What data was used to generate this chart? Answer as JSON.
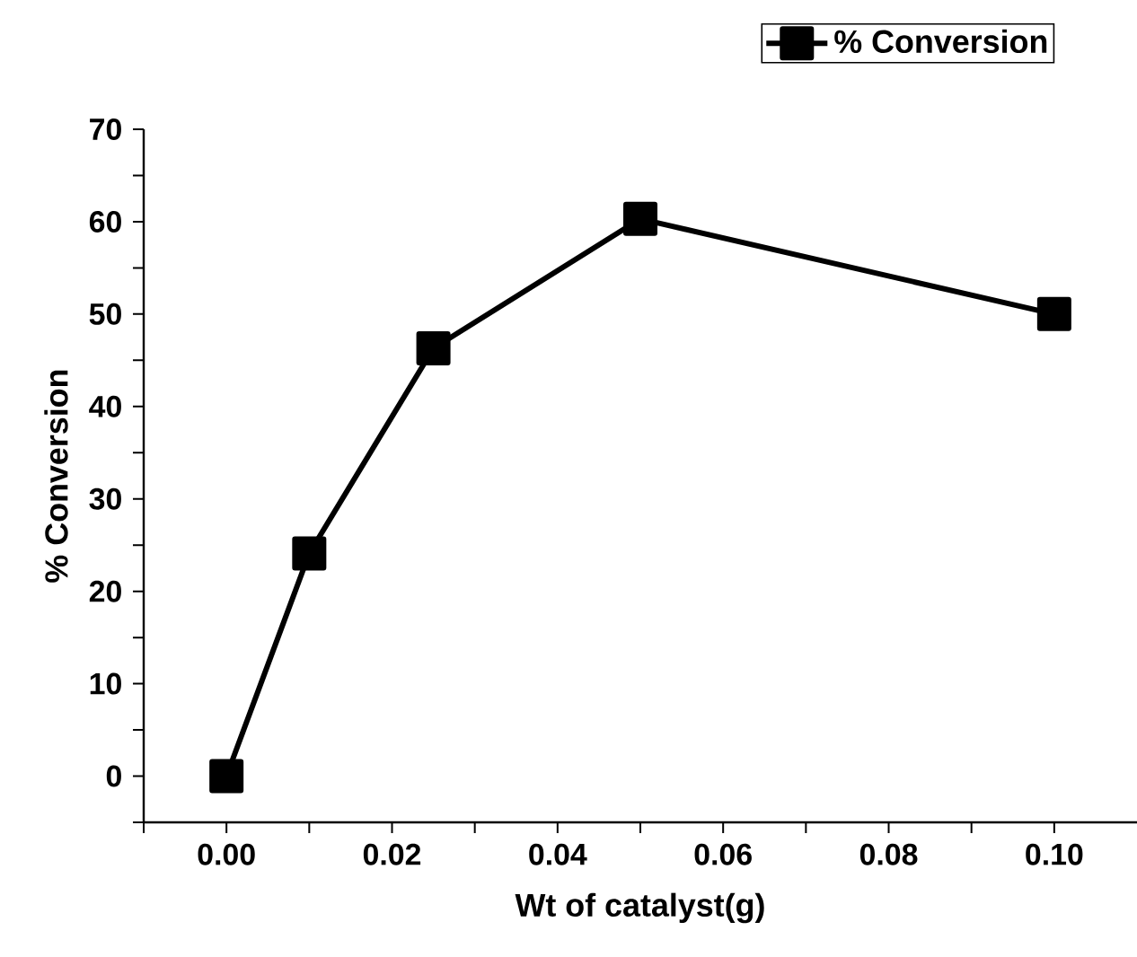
{
  "chart_data": {
    "type": "line",
    "xlabel": "Wt of catalyst(g)",
    "ylabel": "% Conversion",
    "x": [
      0,
      0.01,
      0.025,
      0.05,
      0.1
    ],
    "series": [
      {
        "name": "% Conversion",
        "color": "#000000",
        "values": [
          0,
          24.1,
          46.3,
          60.3,
          50
        ]
      }
    ],
    "xlim": [
      -0.01,
      0.11
    ],
    "xticks": [
      {
        "value": -0.01,
        "label": null
      },
      {
        "value": 0,
        "label": "0.00"
      },
      {
        "value": 0.01,
        "label": null
      },
      {
        "value": 0.02,
        "label": "0.02"
      },
      {
        "value": 0.03,
        "label": null
      },
      {
        "value": 0.04,
        "label": "0.04"
      },
      {
        "value": 0.05,
        "label": null
      },
      {
        "value": 0.06,
        "label": "0.06"
      },
      {
        "value": 0.07,
        "label": null
      },
      {
        "value": 0.08,
        "label": "0.08"
      },
      {
        "value": 0.09,
        "label": null
      },
      {
        "value": 0.1,
        "label": "0.10"
      }
    ],
    "ylim": [
      -5,
      70
    ],
    "yticks": [
      {
        "value": -5,
        "label": null
      },
      0,
      {
        "value": 5,
        "label": null
      },
      10,
      {
        "value": 15,
        "label": null
      },
      20,
      {
        "value": 25,
        "label": null
      },
      30,
      {
        "value": 35,
        "label": null
      },
      40,
      {
        "value": 45,
        "label": null
      },
      50,
      {
        "value": 55,
        "label": null
      },
      60,
      {
        "value": 65,
        "label": null
      },
      70
    ],
    "marker": "square",
    "line_style": "solid",
    "legend": "top right",
    "grid": false
  }
}
